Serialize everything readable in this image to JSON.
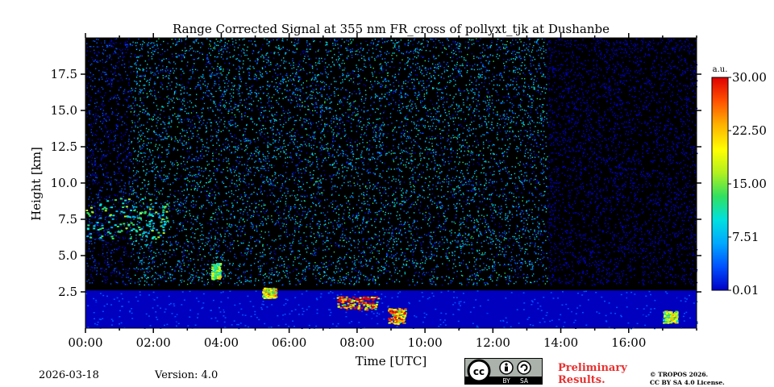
{
  "chart_data": {
    "type": "heatmap",
    "title": "Range Corrected Signal at 355 nm FR_cross of pollyxt_tjk at Dushanbe",
    "xlabel": "Time [UTC]",
    "ylabel": "Height [km]",
    "x_range_hours": [
      0,
      18
    ],
    "y_range_km": [
      0,
      20
    ],
    "x_ticks": [
      {
        "value": 0,
        "label": "00:00"
      },
      {
        "value": 2,
        "label": "02:00"
      },
      {
        "value": 4,
        "label": "04:00"
      },
      {
        "value": 6,
        "label": "06:00"
      },
      {
        "value": 8,
        "label": "08:00"
      },
      {
        "value": 10,
        "label": "10:00"
      },
      {
        "value": 12,
        "label": "12:00"
      },
      {
        "value": 14,
        "label": "14:00"
      },
      {
        "value": 16,
        "label": "16:00"
      }
    ],
    "y_ticks": [
      {
        "value": 2.5,
        "label": "2.5"
      },
      {
        "value": 5.0,
        "label": "5.0"
      },
      {
        "value": 7.5,
        "label": "7.5"
      },
      {
        "value": 10.0,
        "label": "10.0"
      },
      {
        "value": 12.5,
        "label": "12.5"
      },
      {
        "value": 15.0,
        "label": "15.0"
      },
      {
        "value": 17.5,
        "label": "17.5"
      }
    ],
    "colorbar": {
      "unit": "a.u.",
      "range": [
        0.01,
        30.0
      ],
      "ticks": [
        {
          "value": 0.01,
          "label": "0.01"
        },
        {
          "value": 7.51,
          "label": "7.51"
        },
        {
          "value": 15.0,
          "label": "15.00"
        },
        {
          "value": 22.5,
          "label": "22.50"
        },
        {
          "value": 30.0,
          "label": "30.00"
        }
      ],
      "colors": [
        "#0000c8",
        "#0050ff",
        "#00a8ff",
        "#00e0e0",
        "#30e060",
        "#b0f020",
        "#ffff00",
        "#ffb000",
        "#ff5000",
        "#e00000"
      ]
    },
    "features": [
      {
        "name": "noisy-signal-region",
        "t_start": 1.3,
        "t_end": 13.6,
        "h_bottom": 3.0,
        "h_top": 20.0,
        "value": 5
      },
      {
        "name": "night-noise-early",
        "t_start": 0.0,
        "t_end": 1.3,
        "h_bottom": 3.0,
        "h_top": 20.0,
        "value": 2
      },
      {
        "name": "night-noise-late",
        "t_start": 13.6,
        "t_end": 18.0,
        "h_bottom": 3.0,
        "h_top": 20.0,
        "value": 0.5
      },
      {
        "name": "elevated-dust-layer",
        "t_start": 0.0,
        "t_end": 2.4,
        "h_bottom": 6.2,
        "h_top": 9.0,
        "value": 14
      },
      {
        "name": "boundary-layer",
        "t_start": 0.0,
        "t_end": 18.0,
        "h_bottom": 0.0,
        "h_top": 2.6,
        "value": 3
      },
      {
        "name": "cloud-0345",
        "t_start": 3.7,
        "t_end": 3.95,
        "h_bottom": 3.4,
        "h_top": 4.5,
        "value": 18
      },
      {
        "name": "cloud-0530",
        "t_start": 5.2,
        "t_end": 5.6,
        "h_bottom": 2.1,
        "h_top": 2.8,
        "value": 22
      },
      {
        "name": "cloud-0800",
        "t_start": 7.4,
        "t_end": 8.6,
        "h_bottom": 1.3,
        "h_top": 2.2,
        "value": 28
      },
      {
        "name": "cloud-0920",
        "t_start": 8.9,
        "t_end": 9.4,
        "h_bottom": 0.3,
        "h_top": 1.4,
        "value": 26
      },
      {
        "name": "cloud-1720",
        "t_start": 17.0,
        "t_end": 17.4,
        "h_bottom": 0.4,
        "h_top": 1.2,
        "value": 20
      }
    ]
  },
  "footer": {
    "date": "2026-03-18",
    "version": "Version: 4.0",
    "preliminary_line1": "Preliminary",
    "preliminary_line2": "Results.",
    "copyright_line1": "© TROPOS 2026.",
    "copyright_line2": "CC BY SA 4.0 License.",
    "badge_cc": "cc",
    "badge_by": "BY",
    "badge_sa": "SA"
  }
}
